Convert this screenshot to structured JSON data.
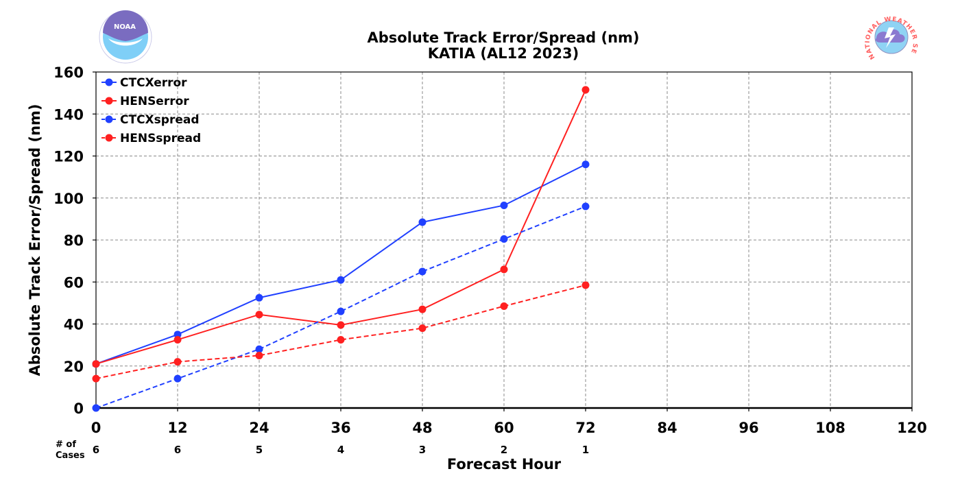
{
  "chart_data": {
    "type": "line",
    "title": "Absolute Track Error/Spread (nm)",
    "subtitle": "KATIA (AL12 2023)",
    "xlabel": "Forecast Hour",
    "ylabel": "Absolute Track Error/Spread (nm)",
    "xlim": [
      0,
      120
    ],
    "ylim": [
      0,
      160
    ],
    "xticks": [
      0,
      12,
      24,
      36,
      48,
      60,
      72,
      84,
      96,
      108,
      120
    ],
    "yticks": [
      0,
      20,
      40,
      60,
      80,
      100,
      120,
      140,
      160
    ],
    "grid": true,
    "legend_position": "top-left",
    "cases_label": [
      "# of",
      "Cases"
    ],
    "cases": [
      {
        "x": 0,
        "n": "6"
      },
      {
        "x": 12,
        "n": "6"
      },
      {
        "x": 24,
        "n": "5"
      },
      {
        "x": 36,
        "n": "4"
      },
      {
        "x": 48,
        "n": "3"
      },
      {
        "x": 60,
        "n": "2"
      },
      {
        "x": 72,
        "n": "1"
      }
    ],
    "x": [
      0,
      12,
      24,
      36,
      48,
      60,
      72
    ],
    "series": [
      {
        "name": "CTCXerror",
        "color": "#2040ff",
        "style": "solid",
        "values": [
          21,
          35,
          52.5,
          61,
          88.5,
          96.5,
          116
        ]
      },
      {
        "name": "HENSerror",
        "color": "#ff2020",
        "style": "solid",
        "values": [
          21,
          32.5,
          44.5,
          39.5,
          47,
          66,
          151.5
        ]
      },
      {
        "name": "CTCXspread",
        "color": "#2040ff",
        "style": "dashed",
        "values": [
          0,
          14,
          28,
          46,
          65,
          80.5,
          96
        ]
      },
      {
        "name": "HENSspread",
        "color": "#ff2020",
        "style": "dashed",
        "values": [
          14,
          22,
          25,
          32.5,
          38,
          48.5,
          58.5
        ]
      }
    ]
  },
  "logos": {
    "noaa": {
      "name": "noaa-logo",
      "text": "NOAA"
    },
    "nws": {
      "name": "nws-logo",
      "text": "NATIONAL WEATHER SERVICE"
    }
  }
}
